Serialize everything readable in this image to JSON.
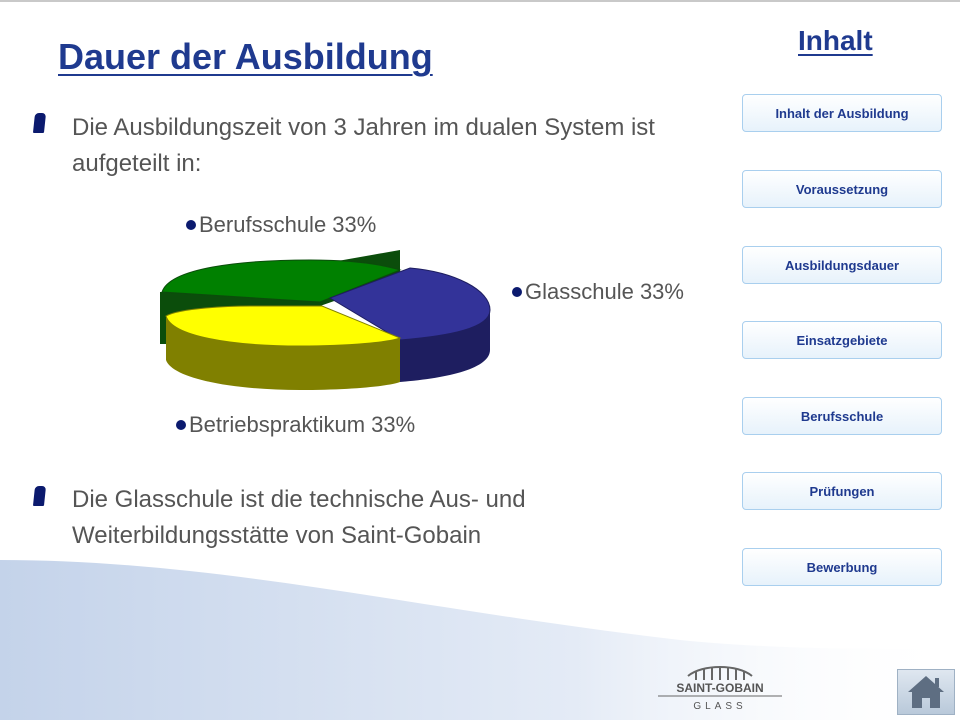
{
  "page_title": "Dauer der Ausbildung",
  "nav_heading": "Inhalt",
  "bullets": [
    "Die Ausbildungszeit von 3 Jahren im dualen System ist aufgeteilt in:",
    "Die Glasschule ist die technische Aus- und Weiterbildungsstätte von Saint-Gobain"
  ],
  "nav_buttons": [
    "Inhalt der Ausbildung",
    "Voraussetzung",
    "Ausbildungsdauer",
    "Einsatzgebiete",
    "Berufsschule",
    "Prüfungen",
    "Bewerbung"
  ],
  "chart_data": {
    "type": "pie",
    "style": "3d-exploded",
    "slices": [
      {
        "label": "Berufsschule",
        "value": 33,
        "color": "#008000",
        "display": "Berufsschule 33%"
      },
      {
        "label": "Glasschule",
        "value": 33,
        "color": "#333399",
        "display": "Glasschule 33%"
      },
      {
        "label": "Betriebspraktikum",
        "value": 33,
        "color": "#ffff00",
        "display": "Betriebspraktikum 33%"
      }
    ]
  },
  "logo": {
    "line1": "SAINT-GOBAIN",
    "line2": "GLASS"
  },
  "colors": {
    "accent": "#1f3a8f",
    "bullet": "#0b1a6e",
    "text": "#555555"
  },
  "icons": {
    "home": "home-icon"
  }
}
